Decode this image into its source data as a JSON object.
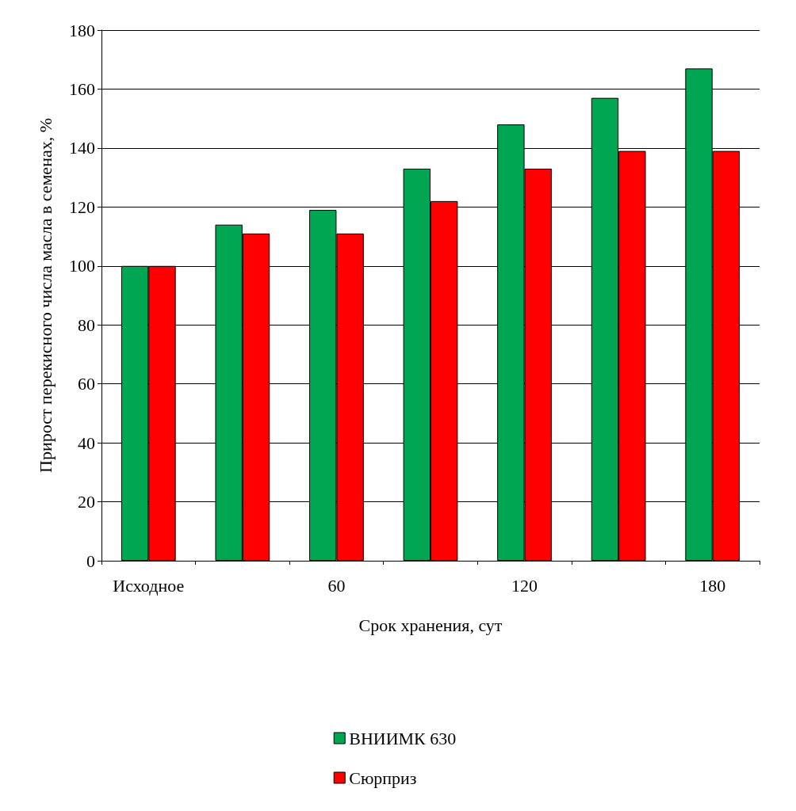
{
  "chart_data": {
    "type": "bar",
    "xlabel": "Срок хранения, сут",
    "ylabel": "Прирост перекисного числа масла в семенах, %",
    "categories": [
      "Исходное",
      null,
      "60",
      null,
      "120",
      null,
      "180"
    ],
    "series": [
      {
        "name": "ВНИИМК 630",
        "color": "#00a651",
        "values": [
          100,
          114,
          119,
          133,
          148,
          157,
          167
        ]
      },
      {
        "name": "Сюрприз",
        "color": "#ff0000",
        "values": [
          100,
          111,
          111,
          122,
          133,
          139,
          139
        ]
      }
    ],
    "ylim": [
      0,
      180
    ],
    "yticks": [
      0,
      20,
      40,
      60,
      80,
      100,
      120,
      140,
      160,
      180
    ],
    "grid": "y",
    "legend": "bottom"
  }
}
